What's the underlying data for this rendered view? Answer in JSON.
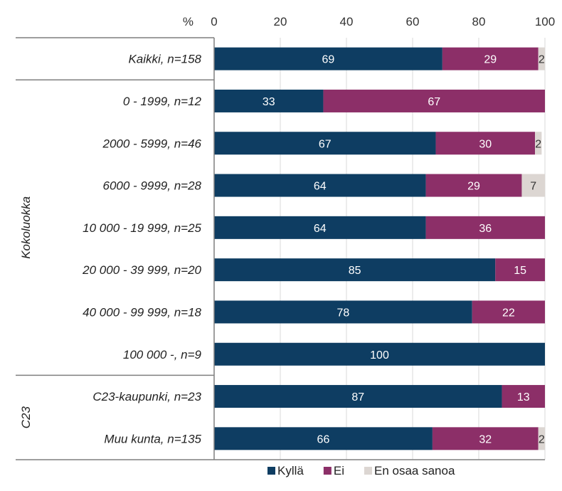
{
  "chart_data": {
    "type": "bar",
    "orientation": "horizontal",
    "stacked": true,
    "percent_unit_label": "%",
    "x_ticks": [
      0,
      20,
      40,
      60,
      80,
      100
    ],
    "xlim": [
      0,
      100
    ],
    "grid": true,
    "legend_position": "bottom",
    "categories": [
      "Kaikki, n=158",
      "0 - 1999, n=12",
      "2000 - 5999, n=46",
      "6000 - 9999, n=28",
      "10 000 - 19 999, n=25",
      "20 000 - 39 999, n=20",
      "40 000 - 99 999, n=18",
      "100 000 -, n=9",
      "C23-kaupunki, n=23",
      "Muu kunta, n=135"
    ],
    "groups": [
      {
        "label": "",
        "categories": [
          "Kaikki, n=158"
        ]
      },
      {
        "label": "Kokoluokka",
        "categories": [
          "0 - 1999, n=12",
          "2000 - 5999, n=46",
          "6000 - 9999, n=28",
          "10 000 - 19 999, n=25",
          "20 000 - 39 999, n=20",
          "40 000 - 99 999, n=18",
          "100 000 -, n=9"
        ]
      },
      {
        "label": "C23",
        "categories": [
          "C23-kaupunki, n=23",
          "Muu kunta, n=135"
        ]
      }
    ],
    "series": [
      {
        "name": "Kyllä",
        "color": "#0e3d62",
        "label_color": "#ffffff",
        "values": [
          69,
          33,
          67,
          64,
          64,
          85,
          78,
          100,
          87,
          66
        ]
      },
      {
        "name": "Ei",
        "color": "#8c2f68",
        "label_color": "#ffffff",
        "values": [
          29,
          67,
          30,
          29,
          36,
          15,
          22,
          0,
          13,
          32
        ]
      },
      {
        "name": "En osaa sanoa",
        "color": "#dcd6d2",
        "label_color": "#333333",
        "values": [
          2,
          0,
          2,
          7,
          0,
          0,
          0,
          0,
          0,
          2
        ]
      }
    ]
  }
}
